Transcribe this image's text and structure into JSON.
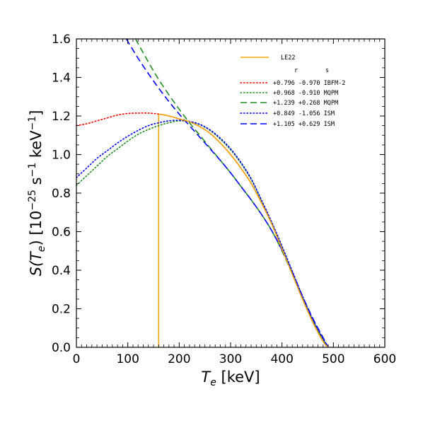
{
  "chart_data": {
    "type": "line",
    "xlabel_main": "T",
    "xlabel_sub": "e",
    "xlabel_unit": "[keV]",
    "ylabel": "S(T_e) [10^-25 s^-1 keV^-1]",
    "ylabel_parts": {
      "func": "S(",
      "var": "T",
      "sub": "e",
      "close": ")",
      "unit_open": "[10",
      "exp1": "−25",
      "mid": "s",
      "exp2": "−1",
      "tail": "keV",
      "exp3": "−1",
      "end": "]"
    },
    "xlim": [
      0,
      600
    ],
    "ylim": [
      0.0,
      1.6
    ],
    "xticks": [
      0,
      100,
      200,
      300,
      400,
      500,
      600
    ],
    "xtick_labels": [
      "0",
      "100",
      "200",
      "300",
      "400",
      "500",
      "600"
    ],
    "yticks": [
      0.0,
      0.2,
      0.4,
      0.6,
      0.8,
      1.0,
      1.2,
      1.4,
      1.6
    ],
    "ytick_labels": [
      "0.0",
      "0.2",
      "0.4",
      "0.6",
      "0.8",
      "1.0",
      "1.2",
      "1.4",
      "1.6"
    ],
    "grid": false,
    "legend_position": "top-right",
    "legend_header": {
      "r": "r",
      "s": "s"
    },
    "threshold_line": {
      "x": 160,
      "y": [
        0.0,
        1.21
      ]
    },
    "series": [
      {
        "name": "LE22",
        "legend_label": "LE22",
        "color": "#f5a300",
        "style": "solid",
        "x": [
          160,
          180,
          200,
          220,
          240,
          260,
          280,
          300,
          320,
          340,
          360,
          380,
          400,
          420,
          440,
          460,
          480,
          490
        ],
        "y": [
          1.21,
          1.2,
          1.185,
          1.17,
          1.145,
          1.11,
          1.06,
          1.0,
          0.93,
          0.85,
          0.75,
          0.64,
          0.51,
          0.38,
          0.25,
          0.13,
          0.03,
          0.0
        ]
      },
      {
        "name": "IBFM-2",
        "legend_label": "+0.796 -0.970 IBFM-2",
        "color": "#ff0000",
        "style": "dotted",
        "x": [
          0,
          20,
          40,
          60,
          80,
          100,
          120,
          140,
          160,
          180,
          200,
          220,
          240,
          260,
          280,
          300,
          320,
          340,
          360,
          380,
          400,
          420,
          440,
          460,
          480,
          490
        ],
        "y": [
          1.15,
          1.16,
          1.175,
          1.19,
          1.205,
          1.213,
          1.215,
          1.215,
          1.21,
          1.2,
          1.185,
          1.17,
          1.145,
          1.11,
          1.06,
          1.0,
          0.93,
          0.85,
          0.75,
          0.64,
          0.51,
          0.38,
          0.25,
          0.13,
          0.03,
          0.0
        ]
      },
      {
        "name": "MQPM",
        "legend_label": "+0.968 -0.910 MQPM",
        "color": "#228b22",
        "style": "dotted",
        "x": [
          0,
          20,
          40,
          60,
          80,
          100,
          120,
          140,
          160,
          180,
          200,
          220,
          240,
          260,
          280,
          300,
          320,
          340,
          360,
          380,
          400,
          420,
          440,
          460,
          480,
          490
        ],
        "y": [
          0.84,
          0.89,
          0.94,
          0.99,
          1.03,
          1.07,
          1.105,
          1.13,
          1.15,
          1.165,
          1.175,
          1.17,
          1.155,
          1.125,
          1.08,
          1.025,
          0.955,
          0.87,
          0.76,
          0.645,
          0.52,
          0.39,
          0.26,
          0.14,
          0.04,
          0.0
        ]
      },
      {
        "name": "MQPM",
        "legend_label": "+1.239 +0.268 MQPM",
        "color": "#228b22",
        "style": "dashed",
        "x": [
          115,
          140,
          160,
          180,
          200,
          220,
          240,
          260,
          280,
          300,
          320,
          340,
          360,
          380,
          400,
          420,
          440,
          460,
          480,
          490
        ],
        "y": [
          1.6,
          1.48,
          1.39,
          1.31,
          1.235,
          1.165,
          1.1,
          1.035,
          0.97,
          0.905,
          0.835,
          0.765,
          0.69,
          0.605,
          0.5,
          0.38,
          0.255,
          0.14,
          0.04,
          0.0
        ]
      },
      {
        "name": "ISM",
        "legend_label": "+0.849 -1.056 ISM",
        "color": "#0000ff",
        "style": "dotted",
        "x": [
          0,
          20,
          40,
          60,
          80,
          100,
          120,
          140,
          160,
          180,
          200,
          220,
          240,
          260,
          280,
          300,
          320,
          340,
          360,
          380,
          400,
          420,
          440,
          460,
          480,
          490
        ],
        "y": [
          0.88,
          0.93,
          0.98,
          1.02,
          1.06,
          1.095,
          1.125,
          1.15,
          1.165,
          1.175,
          1.178,
          1.172,
          1.157,
          1.128,
          1.085,
          1.03,
          0.96,
          0.875,
          0.765,
          0.65,
          0.525,
          0.395,
          0.265,
          0.145,
          0.045,
          0.0
        ]
      },
      {
        "name": "ISM",
        "legend_label": "+1.105 +0.629 ISM",
        "color": "#0000ff",
        "style": "dashed",
        "x": [
          97,
          120,
          140,
          160,
          180,
          200,
          220,
          240,
          260,
          280,
          300,
          320,
          340,
          360,
          380,
          400,
          420,
          440,
          460,
          480,
          490
        ],
        "y": [
          1.6,
          1.5,
          1.42,
          1.345,
          1.275,
          1.21,
          1.15,
          1.09,
          1.03,
          0.97,
          0.905,
          0.835,
          0.765,
          0.69,
          0.605,
          0.505,
          0.39,
          0.265,
          0.15,
          0.05,
          0.0
        ]
      }
    ]
  }
}
